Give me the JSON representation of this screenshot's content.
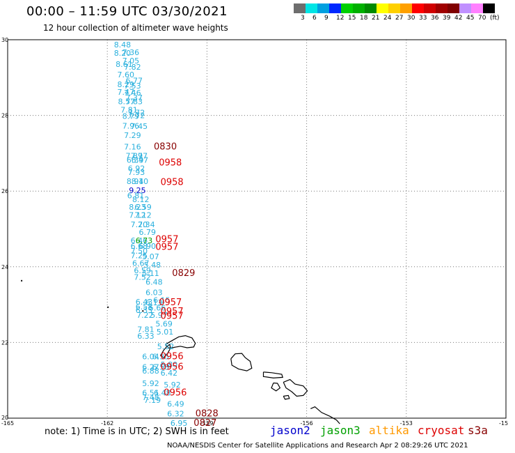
{
  "header": {
    "title": "00:00 – 11:59 UTC 03/30/2021",
    "subtitle": "12 hour collection of altimeter wave heights"
  },
  "colorbar": {
    "colors": [
      "#6e6e6e",
      "#00e5e5",
      "#00a0e0",
      "#0028ff",
      "#00d000",
      "#00b000",
      "#008a00",
      "#ffff00",
      "#ffd000",
      "#ffa000",
      "#ff0000",
      "#d00000",
      "#a00000",
      "#800000",
      "#c090ff",
      "#ff80ff",
      "#000000"
    ],
    "labels": [
      "3",
      "6",
      "9",
      "12",
      "15",
      "18",
      "21",
      "24",
      "27",
      "30",
      "33",
      "36",
      "39",
      "42",
      "45",
      "70",
      "(ft)"
    ]
  },
  "axes": {
    "y_labels": [
      "20",
      "22",
      "24",
      "26",
      "28",
      "30"
    ],
    "x_labels": [
      "-165",
      "-162",
      "-159",
      "-156",
      "-153",
      "-15"
    ]
  },
  "satellites": [
    {
      "name": "jason2",
      "color": "#0000cc"
    },
    {
      "name": "jason3",
      "color": "#00a000"
    },
    {
      "name": "altika",
      "color": "#ff9900"
    },
    {
      "name": "cryosat",
      "color": "#dd0000"
    },
    {
      "name": "s3a",
      "color": "#880000"
    }
  ],
  "note": "note: 1) Time is in UTC; 2) SWH is in feet",
  "credit": "NOAA/NESDIS Center for Satellite Applications and Research    Apr  2 08:29:26 UTC 2021",
  "wave_heights": [
    {
      "lon": -161.8,
      "lat": 29.87,
      "label": "8.48",
      "color": "#2ab0dd"
    },
    {
      "lon": -161.8,
      "lat": 29.65,
      "label": "8.20",
      "color": "#2ab0dd"
    },
    {
      "lon": -161.55,
      "lat": 29.67,
      "label": "7.36",
      "color": "#2ab0dd"
    },
    {
      "lon": -161.55,
      "lat": 29.45,
      "label": "7.05",
      "color": "#2ab0dd"
    },
    {
      "lon": -161.75,
      "lat": 29.36,
      "label": "8.61",
      "color": "#2ab0dd"
    },
    {
      "lon": -161.5,
      "lat": 29.28,
      "label": "7.82",
      "color": "#2ab0dd"
    },
    {
      "lon": -161.7,
      "lat": 29.08,
      "label": "7.60",
      "color": "#2ab0dd"
    },
    {
      "lon": -161.45,
      "lat": 28.92,
      "label": "6.77",
      "color": "#2ab0dd"
    },
    {
      "lon": -161.7,
      "lat": 28.82,
      "label": "8.29",
      "color": "#2ab0dd"
    },
    {
      "lon": -161.5,
      "lat": 28.78,
      "label": "7.53",
      "color": "#2ab0dd"
    },
    {
      "lon": -161.7,
      "lat": 28.62,
      "label": "7.47",
      "color": "#2ab0dd"
    },
    {
      "lon": -161.5,
      "lat": 28.6,
      "label": "7.46",
      "color": "#2ab0dd"
    },
    {
      "lon": -161.45,
      "lat": 28.47,
      "label": "7.37",
      "color": "#2ab0dd"
    },
    {
      "lon": -161.68,
      "lat": 28.37,
      "label": "8.57",
      "color": "#2ab0dd"
    },
    {
      "lon": -161.45,
      "lat": 28.37,
      "label": "7.83",
      "color": "#2ab0dd"
    },
    {
      "lon": -161.6,
      "lat": 28.15,
      "label": "7.81",
      "color": "#2ab0dd"
    },
    {
      "lon": -161.38,
      "lat": 28.08,
      "label": "7.72",
      "color": "#2ab0dd"
    },
    {
      "lon": -161.55,
      "lat": 27.98,
      "label": "8.79",
      "color": "#2ab0dd"
    },
    {
      "lon": -161.38,
      "lat": 28.0,
      "label": "7.72",
      "color": "#2ab0dd"
    },
    {
      "lon": -161.55,
      "lat": 27.73,
      "label": "7.96",
      "color": "#2ab0dd"
    },
    {
      "lon": -161.3,
      "lat": 27.72,
      "label": "7.45",
      "color": "#2ab0dd"
    },
    {
      "lon": -161.5,
      "lat": 27.48,
      "label": "7.29",
      "color": "#2ab0dd"
    },
    {
      "lon": -161.5,
      "lat": 27.17,
      "label": "7.16",
      "color": "#2ab0dd"
    },
    {
      "lon": -160.6,
      "lat": 27.17,
      "label": "0830",
      "color": "#880000"
    },
    {
      "lon": -161.45,
      "lat": 26.93,
      "label": "7.87",
      "color": "#2ab0dd"
    },
    {
      "lon": -161.3,
      "lat": 26.93,
      "label": "7.97",
      "color": "#2ab0dd"
    },
    {
      "lon": -161.42,
      "lat": 26.82,
      "label": "6.39",
      "color": "#2ab0dd"
    },
    {
      "lon": -161.28,
      "lat": 26.82,
      "label": "6.47",
      "color": "#2ab0dd"
    },
    {
      "lon": -160.45,
      "lat": 26.75,
      "label": "0958",
      "color": "#dd0000"
    },
    {
      "lon": -161.38,
      "lat": 26.6,
      "label": "6.92",
      "color": "#2ab0dd"
    },
    {
      "lon": -161.38,
      "lat": 26.5,
      "label": "7.93",
      "color": "#2ab0dd"
    },
    {
      "lon": -161.42,
      "lat": 26.26,
      "label": "8.94",
      "color": "#2ab0dd"
    },
    {
      "lon": -161.28,
      "lat": 26.26,
      "label": "8.10",
      "color": "#2ab0dd"
    },
    {
      "lon": -160.4,
      "lat": 26.23,
      "label": "0958",
      "color": "#dd0000"
    },
    {
      "lon": -161.35,
      "lat": 26.02,
      "label": "9.25",
      "color": "#0000cc"
    },
    {
      "lon": -161.4,
      "lat": 25.88,
      "label": "6.81",
      "color": "#2ab0dd"
    },
    {
      "lon": -161.25,
      "lat": 25.78,
      "label": "8.12",
      "color": "#2ab0dd"
    },
    {
      "lon": -161.35,
      "lat": 25.58,
      "label": "8.23",
      "color": "#2ab0dd"
    },
    {
      "lon": -161.18,
      "lat": 25.58,
      "label": "6.59",
      "color": "#2ab0dd"
    },
    {
      "lon": -161.35,
      "lat": 25.37,
      "label": "7.12",
      "color": "#2ab0dd"
    },
    {
      "lon": -161.18,
      "lat": 25.37,
      "label": "7.12",
      "color": "#2ab0dd"
    },
    {
      "lon": -161.3,
      "lat": 25.12,
      "label": "7.20",
      "color": "#2ab0dd"
    },
    {
      "lon": -161.08,
      "lat": 25.12,
      "label": "7.34",
      "color": "#2ab0dd"
    },
    {
      "lon": -161.05,
      "lat": 24.92,
      "label": "6.79",
      "color": "#2ab0dd"
    },
    {
      "lon": -161.3,
      "lat": 24.7,
      "label": "6.46",
      "color": "#2ab0dd"
    },
    {
      "lon": -161.15,
      "lat": 24.7,
      "label": "6.73",
      "color": "#00a000"
    },
    {
      "lon": -160.55,
      "lat": 24.72,
      "label": "0957",
      "color": "#dd0000"
    },
    {
      "lon": -161.3,
      "lat": 24.55,
      "label": "6.68",
      "color": "#2ab0dd"
    },
    {
      "lon": -161.05,
      "lat": 24.55,
      "label": "6.90",
      "color": "#2ab0dd"
    },
    {
      "lon": -160.55,
      "lat": 24.52,
      "label": "0957",
      "color": "#dd0000"
    },
    {
      "lon": -161.3,
      "lat": 24.42,
      "label": "7.50",
      "color": "#2ab0dd"
    },
    {
      "lon": -161.3,
      "lat": 24.3,
      "label": "7.25",
      "color": "#2ab0dd"
    },
    {
      "lon": -160.95,
      "lat": 24.27,
      "label": "5.07",
      "color": "#2ab0dd"
    },
    {
      "lon": -161.25,
      "lat": 24.1,
      "label": "6.67",
      "color": "#2ab0dd"
    },
    {
      "lon": -160.9,
      "lat": 24.05,
      "label": "5.48",
      "color": "#2ab0dd"
    },
    {
      "lon": -161.2,
      "lat": 23.9,
      "label": "6.59",
      "color": "#2ab0dd"
    },
    {
      "lon": -160.95,
      "lat": 23.83,
      "label": "5.11",
      "color": "#2ab0dd"
    },
    {
      "lon": -160.05,
      "lat": 23.83,
      "label": "0829",
      "color": "#880000"
    },
    {
      "lon": -161.2,
      "lat": 23.73,
      "label": "7.52",
      "color": "#2ab0dd"
    },
    {
      "lon": -160.85,
      "lat": 23.6,
      "label": "6.48",
      "color": "#2ab0dd"
    },
    {
      "lon": -160.85,
      "lat": 23.32,
      "label": "6.03",
      "color": "#2ab0dd"
    },
    {
      "lon": -160.62,
      "lat": 23.12,
      "label": "6.15",
      "color": "#2ab0dd"
    },
    {
      "lon": -161.15,
      "lat": 23.08,
      "label": "6.43",
      "color": "#2ab0dd"
    },
    {
      "lon": -160.85,
      "lat": 23.06,
      "label": "6.13",
      "color": "#2ab0dd"
    },
    {
      "lon": -160.45,
      "lat": 23.06,
      "label": "0957",
      "color": "#dd0000"
    },
    {
      "lon": -161.15,
      "lat": 22.95,
      "label": "6.58",
      "color": "#2ab0dd"
    },
    {
      "lon": -160.75,
      "lat": 22.92,
      "label": "5.66",
      "color": "#2ab0dd"
    },
    {
      "lon": -161.15,
      "lat": 22.85,
      "label": "6.35",
      "color": "#2ab0dd"
    },
    {
      "lon": -160.4,
      "lat": 22.82,
      "label": "0957",
      "color": "#dd0000"
    },
    {
      "lon": -161.12,
      "lat": 22.73,
      "label": "7.22",
      "color": "#2ab0dd"
    },
    {
      "lon": -160.7,
      "lat": 22.73,
      "label": "5.97",
      "color": "#2ab0dd"
    },
    {
      "lon": -160.4,
      "lat": 22.7,
      "label": "0957",
      "color": "#dd0000"
    },
    {
      "lon": -160.55,
      "lat": 22.5,
      "label": "5.69",
      "color": "#2ab0dd"
    },
    {
      "lon": -161.1,
      "lat": 22.35,
      "label": "7.81",
      "color": "#2ab0dd"
    },
    {
      "lon": -160.52,
      "lat": 22.28,
      "label": "5.01",
      "color": "#2ab0dd"
    },
    {
      "lon": -161.1,
      "lat": 22.17,
      "label": "6.33",
      "color": "#2ab0dd"
    },
    {
      "lon": -160.5,
      "lat": 21.9,
      "label": "5.52",
      "color": "#2ab0dd"
    },
    {
      "lon": -160.95,
      "lat": 21.63,
      "label": "6.04",
      "color": "#2ab0dd"
    },
    {
      "lon": -160.65,
      "lat": 21.63,
      "label": "6.35",
      "color": "#2ab0dd"
    },
    {
      "lon": -160.4,
      "lat": 21.63,
      "label": "0956",
      "color": "#dd0000"
    },
    {
      "lon": -160.4,
      "lat": 21.42,
      "label": "5.80",
      "color": "#2ab0dd"
    },
    {
      "lon": -160.95,
      "lat": 21.35,
      "label": "6.27",
      "color": "#2ab0dd"
    },
    {
      "lon": -160.65,
      "lat": 21.35,
      "label": "6.58",
      "color": "#2ab0dd"
    },
    {
      "lon": -160.4,
      "lat": 21.35,
      "label": "0956",
      "color": "#dd0000"
    },
    {
      "lon": -160.95,
      "lat": 21.25,
      "label": "6.88",
      "color": "#2ab0dd"
    },
    {
      "lon": -160.4,
      "lat": 21.2,
      "label": "6.42",
      "color": "#2ab0dd"
    },
    {
      "lon": -160.95,
      "lat": 20.92,
      "label": "5.92",
      "color": "#2ab0dd"
    },
    {
      "lon": -160.3,
      "lat": 20.88,
      "label": "5.92",
      "color": "#2ab0dd"
    },
    {
      "lon": -160.95,
      "lat": 20.67,
      "label": "6.51",
      "color": "#2ab0dd"
    },
    {
      "lon": -160.6,
      "lat": 20.67,
      "label": "6.48",
      "color": "#2ab0dd"
    },
    {
      "lon": -160.3,
      "lat": 20.67,
      "label": "0956",
      "color": "#dd0000"
    },
    {
      "lon": -160.95,
      "lat": 20.55,
      "label": "7.48",
      "color": "#2ab0dd"
    },
    {
      "lon": -160.9,
      "lat": 20.48,
      "label": "7.19",
      "color": "#2ab0dd"
    },
    {
      "lon": -160.2,
      "lat": 20.38,
      "label": "6.49",
      "color": "#2ab0dd"
    },
    {
      "lon": -160.2,
      "lat": 20.12,
      "label": "6.32",
      "color": "#2ab0dd"
    },
    {
      "lon": -159.35,
      "lat": 20.12,
      "label": "0828",
      "color": "#880000"
    },
    {
      "lon": -160.1,
      "lat": 19.87,
      "label": "6.95",
      "color": "#2ab0dd"
    },
    {
      "lon": -159.4,
      "lat": 19.87,
      "label": "0827",
      "color": "#880000"
    }
  ],
  "islands": [
    [
      [
        -160.25,
        21.95
      ],
      [
        -160.05,
        22.05
      ],
      [
        -159.85,
        22.15
      ],
      [
        -159.65,
        22.18
      ],
      [
        -159.45,
        22.12
      ],
      [
        -159.35,
        21.98
      ],
      [
        -159.4,
        21.88
      ],
      [
        -159.6,
        21.86
      ],
      [
        -159.8,
        21.9
      ],
      [
        -160.0,
        21.87
      ],
      [
        -160.15,
        21.85
      ],
      [
        -160.25,
        21.95
      ]
    ],
    [
      [
        -160.4,
        21.65
      ],
      [
        -160.3,
        21.8
      ],
      [
        -160.2,
        21.9
      ],
      [
        -160.12,
        21.95
      ],
      [
        -160.1,
        21.85
      ],
      [
        -160.18,
        21.72
      ],
      [
        -160.3,
        21.6
      ],
      [
        -160.4,
        21.65
      ]
    ],
    [
      [
        -158.28,
        21.57
      ],
      [
        -158.15,
        21.7
      ],
      [
        -157.95,
        21.71
      ],
      [
        -157.85,
        21.6
      ],
      [
        -157.7,
        21.5
      ],
      [
        -157.65,
        21.32
      ],
      [
        -157.8,
        21.25
      ],
      [
        -158.05,
        21.3
      ],
      [
        -158.25,
        21.4
      ],
      [
        -158.28,
        21.57
      ]
    ],
    [
      [
        -157.3,
        21.22
      ],
      [
        -157.05,
        21.2
      ],
      [
        -156.75,
        21.16
      ],
      [
        -156.72,
        21.08
      ],
      [
        -157.0,
        21.06
      ],
      [
        -157.3,
        21.1
      ],
      [
        -157.3,
        21.22
      ]
    ],
    [
      [
        -157.0,
        20.93
      ],
      [
        -156.88,
        20.92
      ],
      [
        -156.8,
        20.8
      ],
      [
        -156.92,
        20.72
      ],
      [
        -157.06,
        20.8
      ],
      [
        -157.0,
        20.93
      ]
    ],
    [
      [
        -156.7,
        20.95
      ],
      [
        -156.5,
        21.02
      ],
      [
        -156.35,
        20.9
      ],
      [
        -156.1,
        20.85
      ],
      [
        -155.98,
        20.72
      ],
      [
        -156.1,
        20.6
      ],
      [
        -156.3,
        20.58
      ],
      [
        -156.45,
        20.7
      ],
      [
        -156.62,
        20.8
      ],
      [
        -156.7,
        20.95
      ]
    ],
    [
      [
        -156.7,
        20.58
      ],
      [
        -156.55,
        20.6
      ],
      [
        -156.52,
        20.52
      ],
      [
        -156.65,
        20.5
      ],
      [
        -156.7,
        20.58
      ]
    ],
    [
      [
        -155.88,
        20.25
      ],
      [
        -155.75,
        20.3
      ],
      [
        -155.55,
        20.15
      ],
      [
        -155.3,
        20.05
      ],
      [
        -155.1,
        19.95
      ],
      [
        -155.0,
        19.85
      ]
    ]
  ],
  "dots": [
    {
      "lon": -164.6,
      "lat": 23.65
    },
    {
      "lon": -162.0,
      "lat": 22.95
    },
    {
      "lon": -160.95,
      "lat": 22.85
    }
  ]
}
